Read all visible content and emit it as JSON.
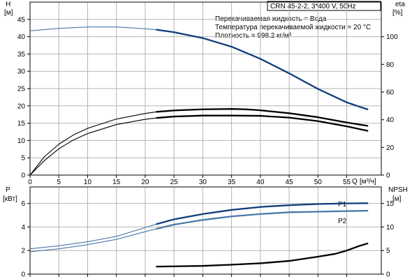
{
  "chart_data": [
    {
      "id": "top",
      "type": "line",
      "title": "CRN 45-2-2, 3*400 V, 50Hz",
      "annotations": [
        "Перекачиваемая жидкость = Вода",
        "Температура перекачиваемой жидкости = 20 °C",
        "Плотность = 998.2 кг/м³"
      ],
      "xlabel": "Q",
      "xunit": "[м³/ч]",
      "xlim": [
        0,
        61
      ],
      "xticks": [
        0,
        5,
        10,
        15,
        20,
        25,
        30,
        35,
        40,
        45,
        50,
        55
      ],
      "left_axis": {
        "label": "H",
        "unit": "[м]",
        "lim": [
          0,
          50
        ],
        "ticks": [
          0,
          5,
          10,
          15,
          20,
          25,
          30,
          35,
          40,
          45
        ]
      },
      "right_axis": {
        "label": "eta",
        "unit": "[%]",
        "lim": [
          0,
          125
        ],
        "ticks": [
          0,
          20,
          40,
          60,
          80,
          100
        ]
      },
      "grid": true,
      "series": [
        {
          "axis": "left",
          "color": "#4a78a8",
          "bold_color": "#103e7a",
          "x": [
            0,
            5,
            10,
            15,
            20,
            22,
            25,
            30,
            35,
            40,
            45,
            50,
            55,
            58.6
          ],
          "y": [
            41.7,
            42.4,
            42.8,
            42.8,
            42.3,
            42.0,
            41.3,
            39.6,
            37.1,
            33.6,
            29.4,
            24.9,
            21.0,
            19.0
          ],
          "bold_from": 22
        },
        {
          "axis": "right",
          "color": "#000000",
          "bold_color": "#000000",
          "x": [
            0,
            2.5,
            5,
            7.5,
            10,
            15,
            20,
            22,
            25,
            30,
            35,
            37.5,
            40,
            45,
            50,
            55,
            58.6
          ],
          "y": [
            0,
            13.3,
            22.3,
            28.9,
            33.8,
            40.5,
            44.5,
            45.7,
            46.7,
            47.5,
            47.8,
            47.5,
            46.8,
            44.7,
            41.8,
            38.0,
            35.6
          ],
          "bold_from": 22
        },
        {
          "axis": "right",
          "color": "#000000",
          "bold_color": "#000000",
          "x": [
            0,
            2.5,
            5,
            7.5,
            10,
            15,
            20,
            22,
            25,
            30,
            35,
            40,
            45,
            50,
            55,
            58.6
          ],
          "y": [
            0,
            10.5,
            19.0,
            25.3,
            30.0,
            36.5,
            40.3,
            41.3,
            42.3,
            43.0,
            43.0,
            42.8,
            41.5,
            39.0,
            35.2,
            32.0
          ],
          "bold_from": 22
        }
      ]
    },
    {
      "id": "bottom",
      "type": "line",
      "xlim": [
        0,
        61
      ],
      "left_axis": {
        "label": "P",
        "unit": "[кВт]",
        "lim": [
          0,
          7.4
        ],
        "ticks": [
          0,
          2,
          4,
          6
        ]
      },
      "right_axis": {
        "label": "NPSH",
        "unit": "[м]",
        "lim": [
          0,
          18.5
        ],
        "ticks": [
          0,
          5,
          10,
          15
        ]
      },
      "grid": true,
      "series": [
        {
          "name": "P1",
          "axis": "left",
          "color": "#4a78a8",
          "bold_color": "#103e7a",
          "x": [
            0,
            5,
            10,
            15,
            20,
            22,
            25,
            30,
            35,
            40,
            45,
            50,
            55,
            58.6
          ],
          "y": [
            2.15,
            2.4,
            2.75,
            3.2,
            3.95,
            4.25,
            4.65,
            5.1,
            5.45,
            5.7,
            5.85,
            5.95,
            6.0,
            6.02
          ],
          "bold_from": 22
        },
        {
          "name": "P2",
          "axis": "left",
          "color": "#4a78a8",
          "bold_color": "#4a78a8",
          "x": [
            0,
            5,
            10,
            15,
            20,
            22,
            25,
            30,
            35,
            40,
            45,
            50,
            55,
            58.6
          ],
          "y": [
            1.9,
            2.15,
            2.5,
            2.95,
            3.6,
            3.85,
            4.2,
            4.6,
            4.9,
            5.1,
            5.25,
            5.3,
            5.35,
            5.38
          ],
          "bold_from": 22
        },
        {
          "axis": "right",
          "color": "#000000",
          "bold_color": "#000000",
          "x": [
            22,
            25,
            30,
            35,
            40,
            45,
            50,
            53,
            55,
            57,
            58.6
          ],
          "y": [
            1.6,
            1.65,
            1.75,
            2.0,
            2.3,
            2.8,
            3.7,
            4.3,
            5.0,
            5.9,
            6.5
          ],
          "bold_from": 22
        }
      ]
    }
  ]
}
